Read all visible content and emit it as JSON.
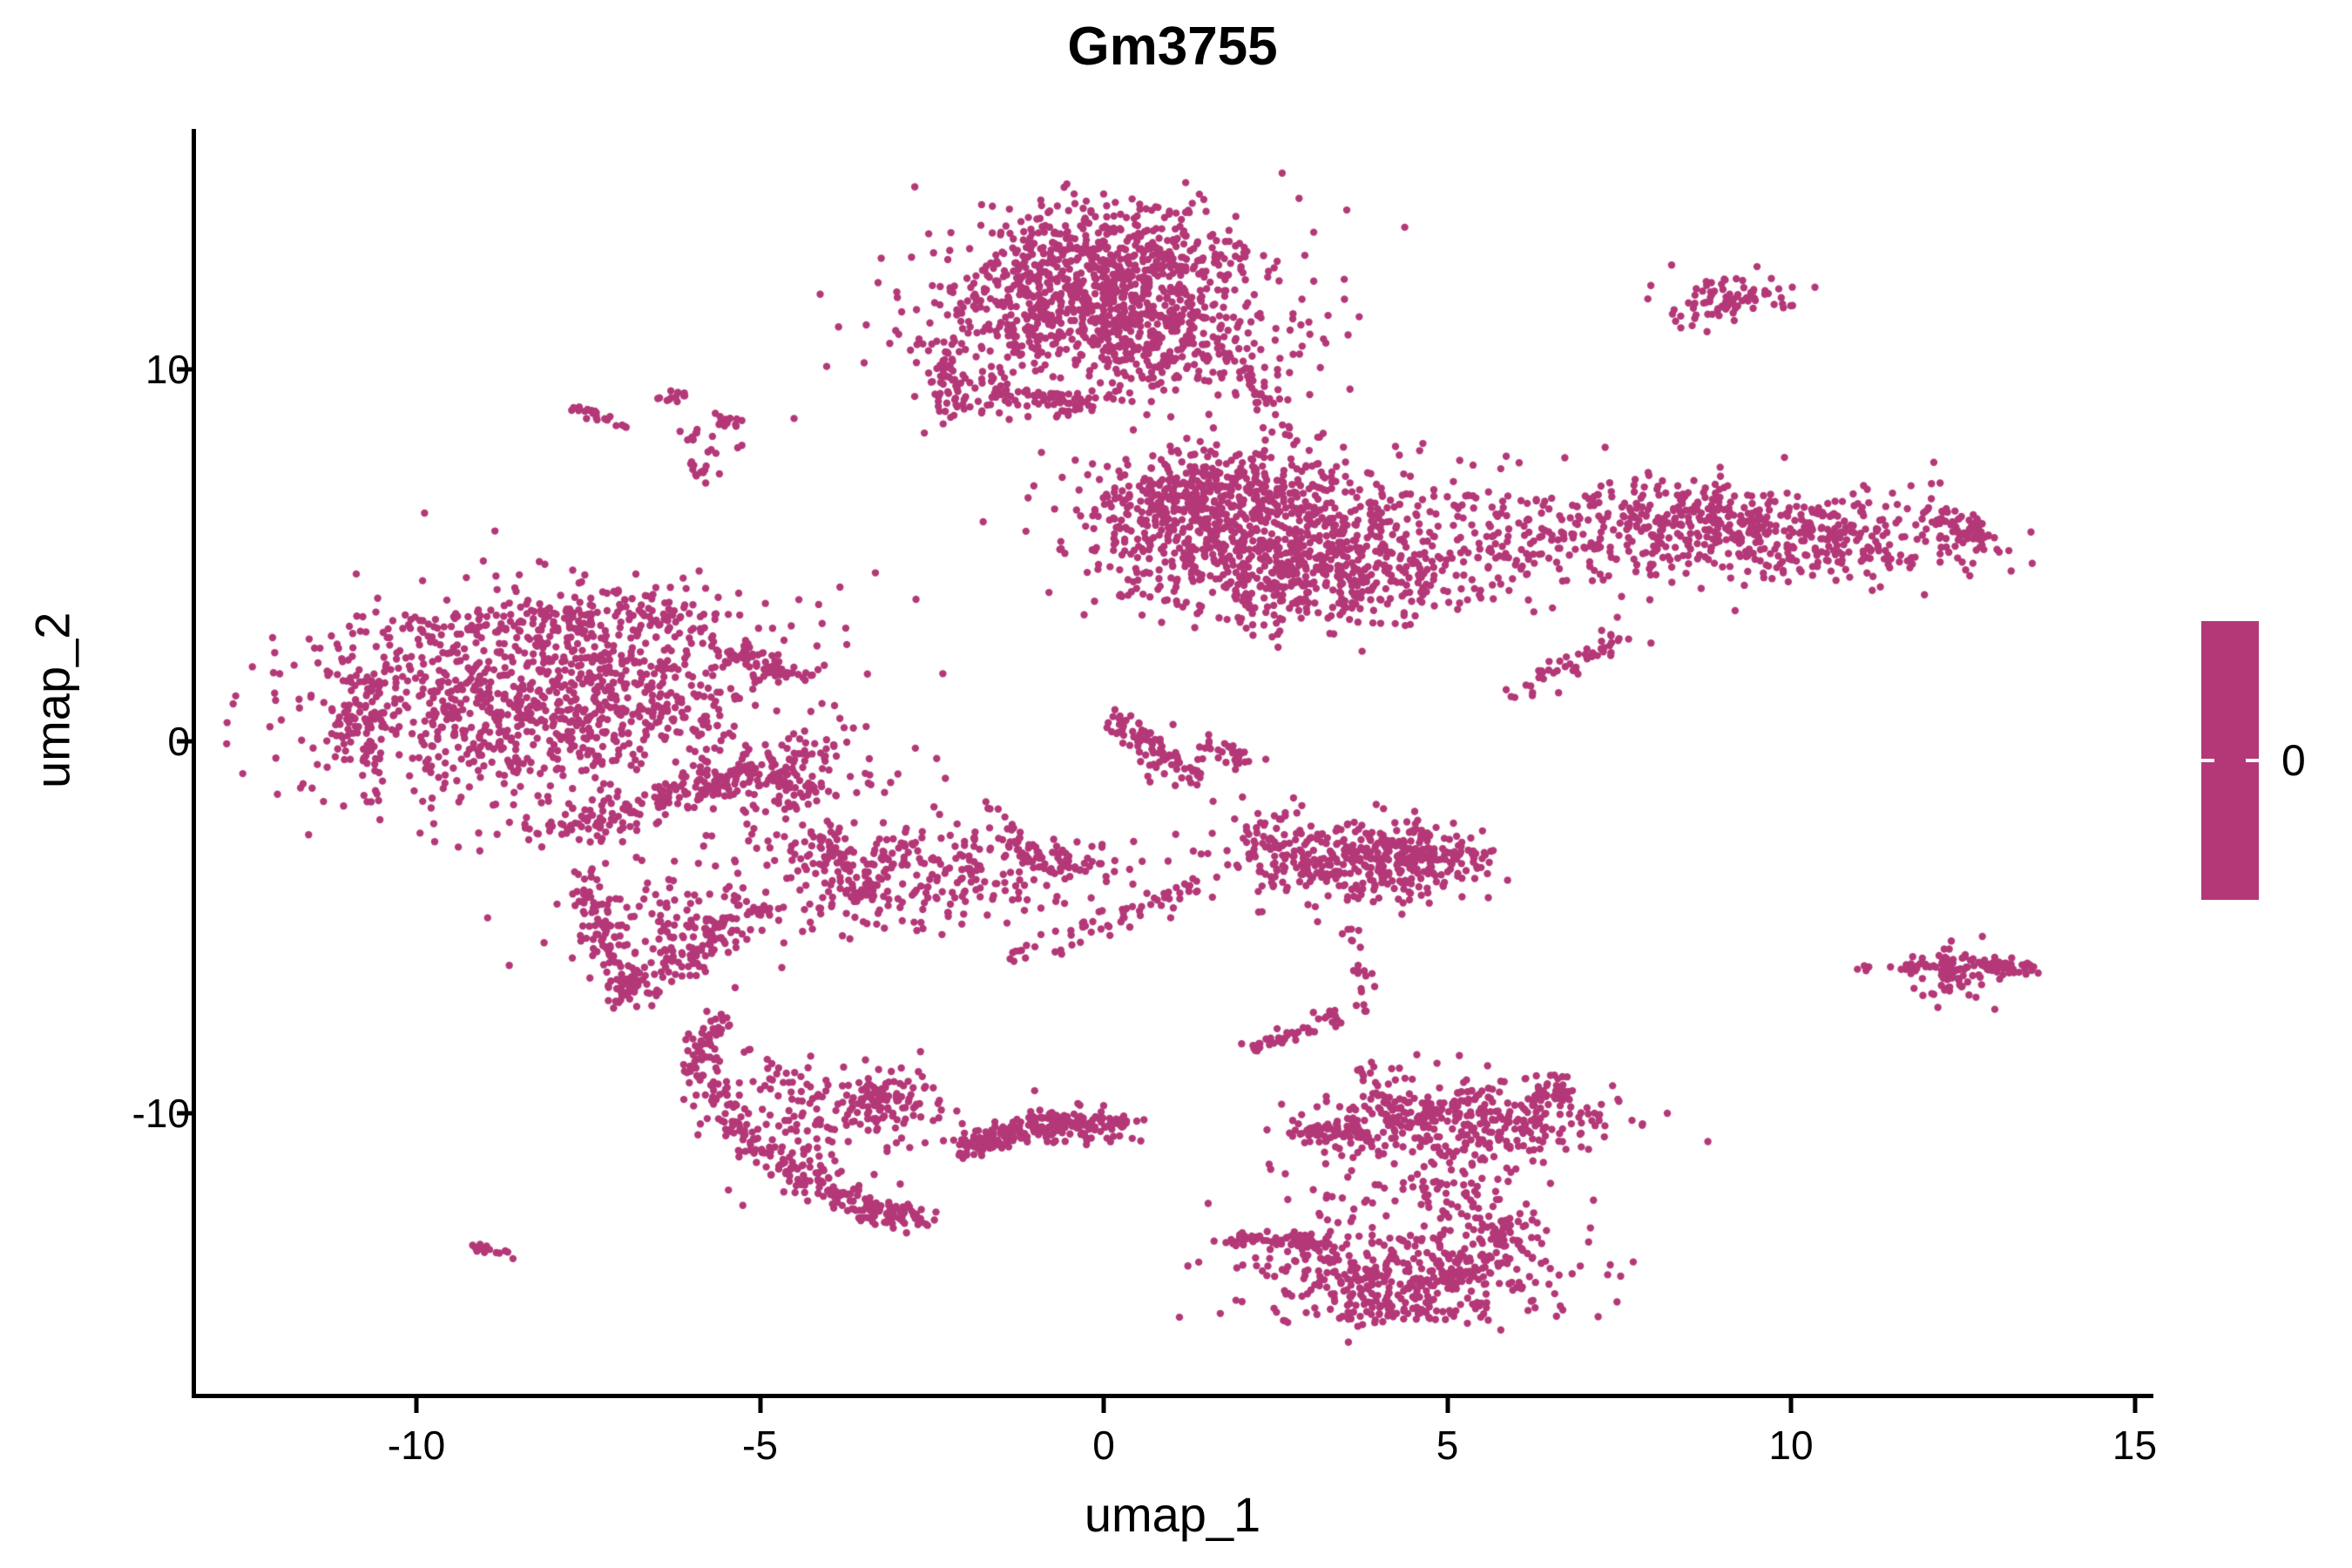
{
  "chart_data": {
    "type": "scatter",
    "title": "Gm3755",
    "xlabel": "umap_1",
    "ylabel": "umap_2",
    "x_ticks": [
      -10,
      -5,
      0,
      5,
      10,
      15
    ],
    "y_ticks": [
      -10,
      0,
      10
    ],
    "xlim": [
      -13.2,
      15.2
    ],
    "ylim": [
      -17.6,
      16.5
    ],
    "grid": false,
    "legend_position": "right",
    "point_color": "#B43878",
    "point_radius_px": 4.2,
    "colorbar": {
      "label": "0",
      "color": "#B43878",
      "tick_color": "#ffffff"
    },
    "description": "UMAP feature plot of gene Gm3755; all cells share expression value 0 (single-color magenta points).",
    "clusters": [
      {
        "type": "gauss",
        "cx": 0.0,
        "cy": 13.0,
        "sdx": 1.05,
        "sdy": 0.7,
        "n": 450
      },
      {
        "type": "gauss",
        "cx": -0.5,
        "cy": 11.4,
        "sdx": 1.1,
        "sdy": 0.8,
        "n": 350
      },
      {
        "type": "gauss",
        "cx": 0.9,
        "cy": 10.8,
        "sdx": 0.9,
        "sdy": 0.85,
        "n": 300
      },
      {
        "type": "band",
        "x1": -1.9,
        "y1": 9.4,
        "x2": -0.3,
        "y2": 9.1,
        "sd": 0.22,
        "n": 90
      },
      {
        "type": "gauss",
        "cx": -2.35,
        "cy": 9.75,
        "sdx": 0.22,
        "sdy": 0.5,
        "n": 60
      },
      {
        "type": "gauss",
        "cx": 0.1,
        "cy": 11.8,
        "sdx": 1.8,
        "sdy": 1.6,
        "n": 150
      },
      {
        "type": "band",
        "x1": 2.0,
        "y1": 9.9,
        "x2": 2.9,
        "y2": 8.0,
        "sd": 0.13,
        "n": 30
      },
      {
        "type": "gauss",
        "cx": 9.2,
        "cy": 12.0,
        "sdx": 0.45,
        "sdy": 0.3,
        "n": 65
      },
      {
        "type": "gauss",
        "cx": 8.5,
        "cy": 11.35,
        "sdx": 0.13,
        "sdy": 0.12,
        "n": 10
      },
      {
        "type": "gauss",
        "cx": 8.85,
        "cy": 11.6,
        "sdx": 0.2,
        "sdy": 0.15,
        "n": 6
      },
      {
        "type": "gauss",
        "cx": 2.2,
        "cy": 5.4,
        "sdx": 1.3,
        "sdy": 1.0,
        "n": 650
      },
      {
        "type": "gauss",
        "cx": 1.2,
        "cy": 6.6,
        "sdx": 0.7,
        "sdy": 0.6,
        "n": 250
      },
      {
        "type": "gauss",
        "cx": 3.3,
        "cy": 4.4,
        "sdx": 0.9,
        "sdy": 0.7,
        "n": 250
      },
      {
        "type": "gauss",
        "cx": 2.5,
        "cy": 7.2,
        "sdx": 1.4,
        "sdy": 0.5,
        "n": 80
      },
      {
        "type": "gauss",
        "cx": 5.6,
        "cy": 5.3,
        "sdx": 1.2,
        "sdy": 0.9,
        "n": 170
      },
      {
        "type": "gauss",
        "cx": 8.3,
        "cy": 5.9,
        "sdx": 1.0,
        "sdy": 0.65,
        "n": 300
      },
      {
        "type": "gauss",
        "cx": 10.5,
        "cy": 5.5,
        "sdx": 1.1,
        "sdy": 0.6,
        "n": 300
      },
      {
        "type": "band",
        "x1": 12.1,
        "y1": 6.15,
        "x2": 12.9,
        "y2": 5.3,
        "sd": 0.18,
        "n": 60
      },
      {
        "type": "band",
        "x1": 6.1,
        "y1": 1.2,
        "x2": 7.5,
        "y2": 2.8,
        "sd": 0.16,
        "n": 50
      },
      {
        "type": "gauss",
        "cx": -8.0,
        "cy": 1.2,
        "sdx": 1.6,
        "sdy": 1.3,
        "n": 850
      },
      {
        "type": "band",
        "x1": -10.4,
        "y1": 3.1,
        "x2": -5.9,
        "y2": 3.6,
        "sd": 0.3,
        "n": 150
      },
      {
        "type": "gauss",
        "cx": -10.8,
        "cy": 0.8,
        "sdx": 0.35,
        "sdy": 1.2,
        "n": 120
      },
      {
        "type": "band",
        "x1": -8.3,
        "y1": -2.6,
        "x2": -4.9,
        "y2": -0.7,
        "sd": 0.25,
        "n": 150
      },
      {
        "type": "band",
        "x1": -7.55,
        "y1": -3.5,
        "x2": -6.95,
        "y2": -6.9,
        "sd": 0.17,
        "n": 90
      },
      {
        "type": "band",
        "x1": -6.95,
        "y1": -6.9,
        "x2": -4.9,
        "y2": -4.3,
        "sd": 0.2,
        "n": 110
      },
      {
        "type": "gauss",
        "cx": -6.4,
        "cy": -4.9,
        "sdx": 0.75,
        "sdy": 0.8,
        "n": 120
      },
      {
        "type": "gauss",
        "cx": -4.6,
        "cy": -0.9,
        "sdx": 0.6,
        "sdy": 0.55,
        "n": 140
      },
      {
        "type": "band",
        "x1": -5.7,
        "y1": 2.5,
        "x2": -4.5,
        "y2": 1.8,
        "sd": 0.2,
        "n": 60
      },
      {
        "type": "gauss",
        "cx": -7.8,
        "cy": 0.5,
        "sdx": 2.2,
        "sdy": 1.8,
        "n": 180
      },
      {
        "type": "gauss",
        "cx": -2.6,
        "cy": -3.5,
        "sdx": 1.3,
        "sdy": 0.75,
        "n": 300
      },
      {
        "type": "band",
        "x1": -4.2,
        "y1": -2.5,
        "x2": -3.4,
        "y2": -4.4,
        "sd": 0.2,
        "n": 70
      },
      {
        "type": "band",
        "x1": -1.2,
        "y1": -3.0,
        "x2": -0.1,
        "y2": -3.4,
        "sd": 0.25,
        "n": 60
      },
      {
        "type": "band",
        "x1": -1.4,
        "y1": -5.9,
        "x2": 1.4,
        "y2": -3.9,
        "sd": 0.15,
        "n": 55
      },
      {
        "type": "band",
        "x1": 0.15,
        "y1": 0.7,
        "x2": 1.4,
        "y2": -1.25,
        "sd": 0.13,
        "n": 70
      },
      {
        "type": "band",
        "x1": 1.5,
        "y1": -0.1,
        "x2": 2.1,
        "y2": -0.5,
        "sd": 0.12,
        "n": 25
      },
      {
        "type": "gauss",
        "cx": 1.0,
        "cy": -0.3,
        "sdx": 0.5,
        "sdy": 0.4,
        "n": 25
      },
      {
        "type": "gauss",
        "cx": 2.4,
        "cy": -1.9,
        "sdx": 0.3,
        "sdy": 0.3,
        "n": 15
      },
      {
        "type": "gauss",
        "cx": 3.6,
        "cy": -3.3,
        "sdx": 1.0,
        "sdy": 0.55,
        "n": 270
      },
      {
        "type": "gauss",
        "cx": 4.5,
        "cy": -3.1,
        "sdx": 0.55,
        "sdy": 0.5,
        "n": 150
      },
      {
        "type": "gauss",
        "cx": 2.6,
        "cy": -2.7,
        "sdx": 0.45,
        "sdy": 0.3,
        "n": 40
      },
      {
        "type": "band",
        "x1": 3.55,
        "y1": -4.8,
        "x2": 3.8,
        "y2": -7.4,
        "sd": 0.09,
        "n": 20
      },
      {
        "type": "gauss",
        "cx": 12.4,
        "cy": -6.2,
        "sdx": 0.3,
        "sdy": 0.33,
        "n": 90
      },
      {
        "type": "band",
        "x1": 12.7,
        "y1": -6.0,
        "x2": 13.5,
        "y2": -6.1,
        "sd": 0.12,
        "n": 45
      },
      {
        "type": "band",
        "x1": 11.0,
        "y1": -6.05,
        "x2": 11.95,
        "y2": -6.1,
        "sd": 0.05,
        "n": 14
      },
      {
        "type": "band",
        "x1": -5.55,
        "y1": -7.35,
        "x2": -5.9,
        "y2": -8.6,
        "sd": 0.12,
        "n": 45
      },
      {
        "type": "band",
        "x1": -5.9,
        "y1": -8.6,
        "x2": -5.1,
        "y2": -10.8,
        "sd": 0.15,
        "n": 60
      },
      {
        "type": "band",
        "x1": -5.1,
        "y1": -10.8,
        "x2": -3.7,
        "y2": -12.4,
        "sd": 0.18,
        "n": 80
      },
      {
        "type": "band",
        "x1": -3.7,
        "y1": -12.45,
        "x2": -2.75,
        "y2": -12.85,
        "sd": 0.18,
        "n": 90
      },
      {
        "type": "gauss",
        "cx": -3.15,
        "cy": -9.6,
        "sdx": 0.3,
        "sdy": 0.5,
        "n": 90
      },
      {
        "type": "gauss",
        "cx": -4.3,
        "cy": -10.3,
        "sdx": 0.75,
        "sdy": 0.8,
        "n": 130
      },
      {
        "type": "band",
        "x1": -5.1,
        "y1": -8.4,
        "x2": -4.3,
        "y2": -9.6,
        "sd": 0.09,
        "n": 12
      },
      {
        "type": "band",
        "x1": -2.2,
        "y1": -11.0,
        "x2": -0.3,
        "y2": -10.2,
        "sd": 0.16,
        "n": 130
      },
      {
        "type": "gauss",
        "cx": -0.55,
        "cy": -10.3,
        "sdx": 0.45,
        "sdy": 0.28,
        "n": 90
      },
      {
        "type": "band",
        "x1": 0.0,
        "y1": -10.2,
        "x2": 0.35,
        "y2": -10.3,
        "sd": 0.1,
        "n": 15
      },
      {
        "type": "band",
        "x1": 2.15,
        "y1": -8.25,
        "x2": 3.0,
        "y2": -7.75,
        "sd": 0.07,
        "n": 35
      },
      {
        "type": "gauss",
        "cx": 3.25,
        "cy": -7.5,
        "sdx": 0.13,
        "sdy": 0.13,
        "n": 12
      },
      {
        "type": "band",
        "x1": 3.75,
        "y1": -8.6,
        "x2": 4.25,
        "y2": -10.3,
        "sd": 0.1,
        "n": 30
      },
      {
        "type": "band",
        "x1": 2.85,
        "y1": -10.55,
        "x2": 3.6,
        "y2": -10.45,
        "sd": 0.13,
        "n": 45
      },
      {
        "type": "band",
        "x1": 3.7,
        "y1": -10.3,
        "x2": 3.9,
        "y2": -11.0,
        "sd": 0.1,
        "n": 18
      },
      {
        "type": "gauss",
        "cx": 5.3,
        "cy": -10.1,
        "sdx": 1.05,
        "sdy": 0.55,
        "n": 330
      },
      {
        "type": "band",
        "x1": 6.3,
        "y1": -9.6,
        "x2": 6.7,
        "y2": -9.3,
        "sd": 0.15,
        "n": 40
      },
      {
        "type": "gauss",
        "cx": 4.6,
        "cy": -12.0,
        "sdx": 1.0,
        "sdy": 0.75,
        "n": 120
      },
      {
        "type": "gauss",
        "cx": 5.7,
        "cy": -13.1,
        "sdx": 0.3,
        "sdy": 0.35,
        "n": 50
      },
      {
        "type": "band",
        "x1": 1.75,
        "y1": -13.35,
        "x2": 3.3,
        "y2": -13.5,
        "sd": 0.12,
        "n": 70
      },
      {
        "type": "gauss",
        "cx": 4.4,
        "cy": -14.3,
        "sdx": 1.15,
        "sdy": 0.6,
        "n": 380
      },
      {
        "type": "gauss",
        "cx": 4.2,
        "cy": -15.3,
        "sdx": 0.8,
        "sdy": 0.25,
        "n": 60
      },
      {
        "type": "band",
        "x1": -9.2,
        "y1": -13.55,
        "x2": -8.65,
        "y2": -13.85,
        "sd": 0.08,
        "n": 16
      },
      {
        "type": "band",
        "x1": -7.65,
        "y1": 8.95,
        "x2": -7.25,
        "y2": 8.6,
        "sd": 0.08,
        "n": 18
      },
      {
        "type": "band",
        "x1": -7.2,
        "y1": 8.5,
        "x2": -6.85,
        "y2": 8.45,
        "sd": 0.04,
        "n": 4
      },
      {
        "type": "gauss",
        "cx": -6.2,
        "cy": 9.3,
        "sdx": 0.12,
        "sdy": 0.1,
        "n": 12
      },
      {
        "type": "gauss",
        "cx": -5.5,
        "cy": 8.6,
        "sdx": 0.12,
        "sdy": 0.1,
        "n": 14
      },
      {
        "type": "gauss",
        "cx": -5.9,
        "cy": 8.2,
        "sdx": 0.12,
        "sdy": 0.08,
        "n": 10
      },
      {
        "type": "gauss",
        "cx": -5.85,
        "cy": 7.2,
        "sdx": 0.1,
        "sdy": 0.12,
        "n": 10
      },
      {
        "type": "gauss",
        "cx": -5.65,
        "cy": 7.8,
        "sdx": 0.2,
        "sdy": 0.3,
        "n": 8
      }
    ]
  }
}
